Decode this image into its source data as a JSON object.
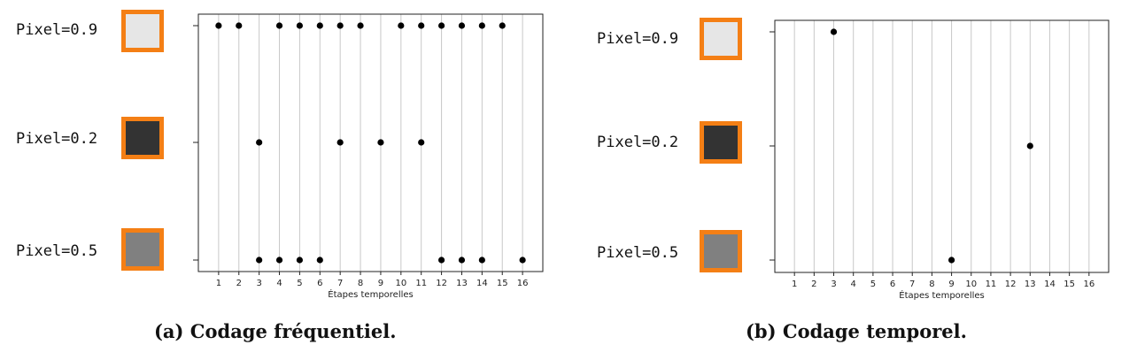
{
  "pixel_labels": [
    "Pixel=0.9",
    "Pixel=0.2",
    "Pixel=0.5"
  ],
  "pixel_colors": [
    "#e6e6e6",
    "#333333",
    "#808080"
  ],
  "swatch_border_color": "#f47f15",
  "captions": {
    "a": "(a) Codage fréquentiel.",
    "b": "(b) Codage temporel."
  },
  "chart_data": [
    {
      "type": "scatter",
      "xlabel": "Étapes temporelles",
      "x_ticks": [
        1,
        2,
        3,
        4,
        5,
        6,
        7,
        8,
        9,
        10,
        11,
        12,
        13,
        14,
        15,
        16
      ],
      "xlim": [
        0,
        17
      ],
      "grid": "vertical",
      "series": [
        {
          "row": "Pixel=0.9",
          "x": [
            1,
            2,
            4,
            5,
            6,
            7,
            8,
            10,
            11,
            12,
            13,
            14,
            15
          ]
        },
        {
          "row": "Pixel=0.2",
          "x": [
            3,
            7,
            9,
            11
          ]
        },
        {
          "row": "Pixel=0.5",
          "x": [
            3,
            4,
            5,
            6,
            12,
            13,
            14,
            16
          ]
        }
      ]
    },
    {
      "type": "scatter",
      "xlabel": "Étapes temporelles",
      "x_ticks": [
        1,
        2,
        3,
        4,
        5,
        6,
        7,
        8,
        9,
        10,
        11,
        12,
        13,
        14,
        15,
        16
      ],
      "xlim": [
        0,
        17
      ],
      "grid": "vertical",
      "series": [
        {
          "row": "Pixel=0.9",
          "x": [
            3
          ]
        },
        {
          "row": "Pixel=0.2",
          "x": [
            13
          ]
        },
        {
          "row": "Pixel=0.5",
          "x": [
            9
          ]
        }
      ]
    }
  ]
}
